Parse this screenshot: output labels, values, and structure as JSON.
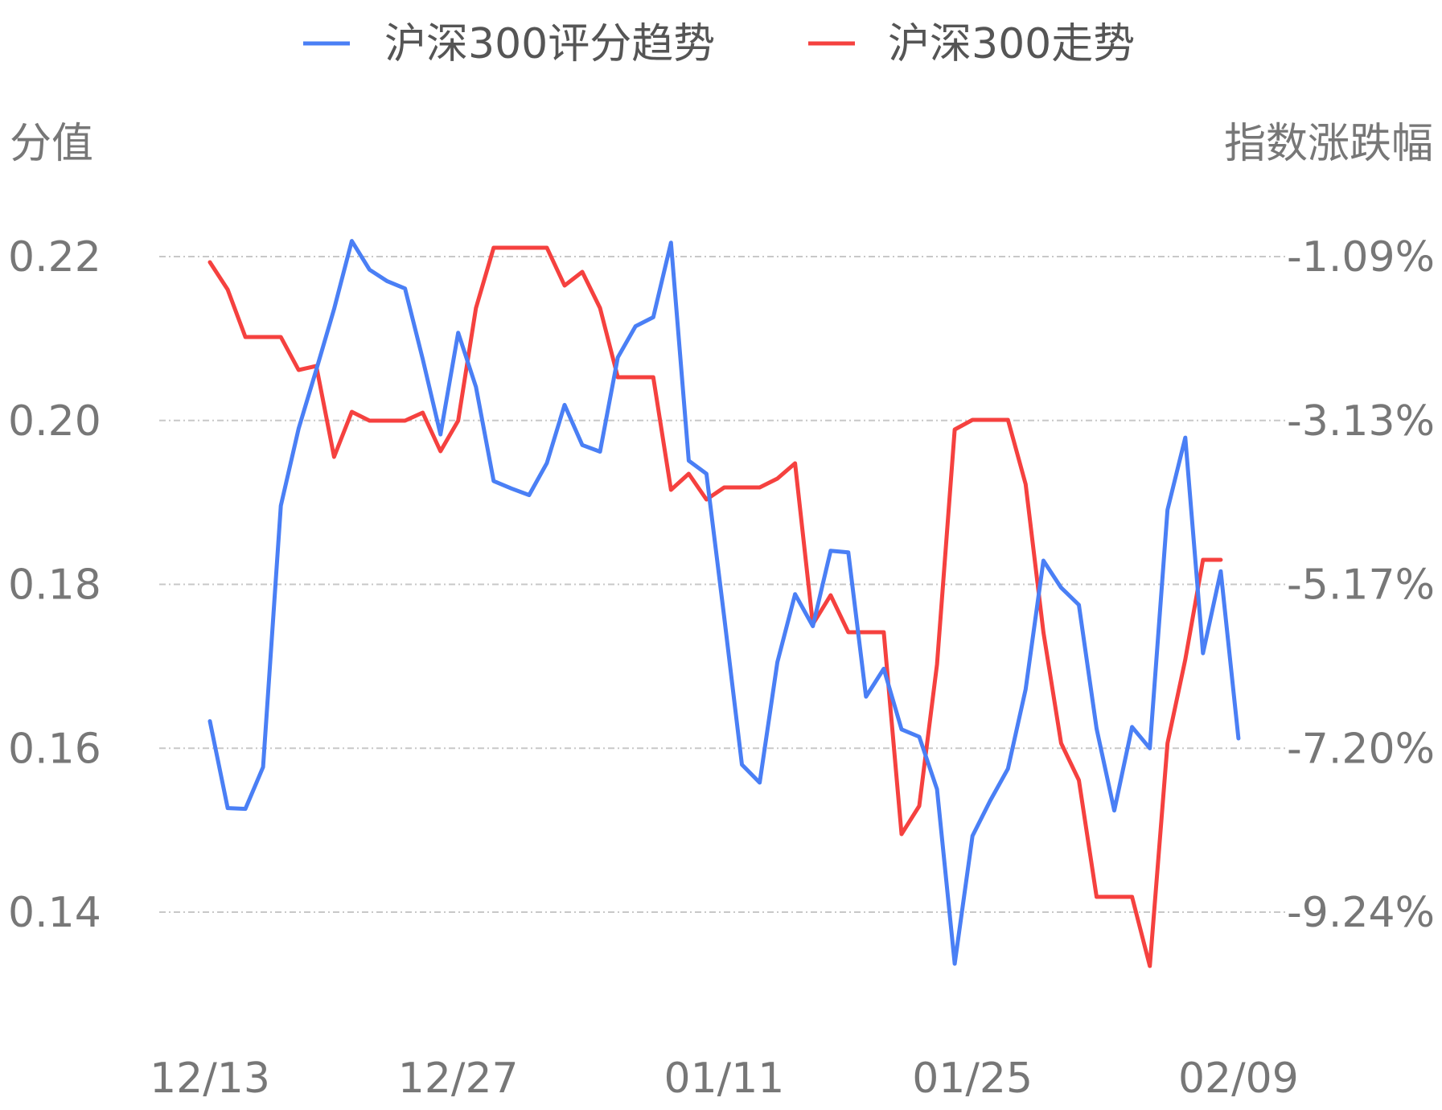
{
  "chart_data": {
    "type": "line",
    "legend": {
      "placement": "top-center",
      "items": [
        {
          "label": "沪深300评分趋势",
          "color": "#4a7ff5"
        },
        {
          "label": "沪深300走势",
          "color": "#f5413f"
        }
      ]
    },
    "left_axis_title": "分值",
    "right_axis_title": "指数涨跌幅",
    "left_ticks": [
      "0.22",
      "0.20",
      "0.18",
      "0.16",
      "0.14"
    ],
    "right_ticks": [
      "-1.09%",
      "-3.13%",
      "-5.17%",
      "-7.20%",
      "-9.24%"
    ],
    "left_range": [
      0.14,
      0.22
    ],
    "right_range": [
      -9.24,
      -1.09
    ],
    "x_tick_labels": [
      "12/13",
      "12/27",
      "01/11",
      "01/25",
      "02/09"
    ],
    "x_tick_index": [
      0,
      14,
      29,
      43,
      58
    ],
    "grid": "horizontal-dashed",
    "series": [
      {
        "name": "沪深300评分趋势",
        "axis": "left",
        "color": "#4a7ff5",
        "values": [
          0.1633,
          0.1527,
          0.1526,
          0.1577,
          0.1896,
          0.199,
          0.2062,
          0.2136,
          0.2219,
          0.2184,
          0.217,
          0.2161,
          0.2075,
          0.1983,
          0.2107,
          0.2041,
          0.1926,
          0.1917,
          0.1909,
          0.1948,
          0.2019,
          0.197,
          0.1962,
          0.2077,
          0.2115,
          0.2126,
          0.2217,
          0.1951,
          0.1935,
          0.176,
          0.158,
          0.1558,
          0.1705,
          0.1788,
          0.1749,
          0.1841,
          0.1839,
          0.1663,
          0.1697,
          0.1623,
          0.1614,
          0.155,
          0.1337,
          0.1493,
          0.1536,
          0.1575,
          0.1672,
          0.1829,
          0.1796,
          0.1775,
          0.1624,
          0.1524,
          0.1626,
          0.16,
          0.1891,
          0.1979,
          0.1716,
          0.1816,
          0.1612
        ]
      },
      {
        "name": "沪深300走势",
        "axis": "right",
        "color": "#f5413f",
        "values": [
          -1.16,
          -1.5,
          -2.09,
          -2.09,
          -2.09,
          -2.5,
          -2.45,
          -3.58,
          -3.02,
          -3.13,
          -3.13,
          -3.13,
          -3.03,
          -3.51,
          -3.13,
          -1.73,
          -0.98,
          -0.98,
          -0.98,
          -0.98,
          -1.45,
          -1.28,
          -1.73,
          -2.59,
          -2.59,
          -2.59,
          -3.99,
          -3.79,
          -4.11,
          -3.96,
          -3.96,
          -3.96,
          -3.85,
          -3.66,
          -5.66,
          -5.3,
          -5.76,
          -5.76,
          -5.76,
          -8.27,
          -7.92,
          -6.16,
          -3.24,
          -3.12,
          -3.12,
          -3.12,
          -3.92,
          -5.76,
          -7.14,
          -7.6,
          -9.05,
          -9.05,
          -9.05,
          -9.91,
          -7.14,
          -6.1,
          -4.86,
          -4.86
        ]
      }
    ]
  }
}
